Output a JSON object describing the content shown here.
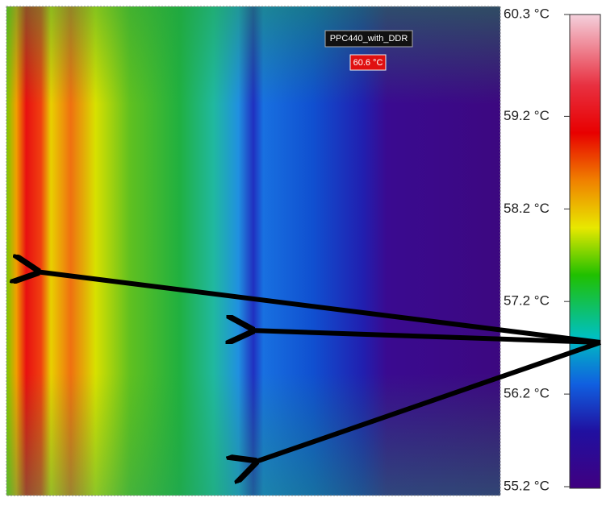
{
  "image": {
    "label": "PPC440_with_DDR",
    "spot_temperature": "60.6 °C"
  },
  "colorbar": {
    "range": [
      55.2,
      60.3
    ],
    "ticks": [
      {
        "value": 60.3,
        "label": "60.3 °C"
      },
      {
        "value": 59.2,
        "label": "59.2 °C"
      },
      {
        "value": 58.2,
        "label": "58.2 °C"
      },
      {
        "value": 57.2,
        "label": "57.2 °C"
      },
      {
        "value": 56.2,
        "label": "56.2 °C"
      },
      {
        "value": 55.2,
        "label": "55.2 °C"
      }
    ]
  }
}
